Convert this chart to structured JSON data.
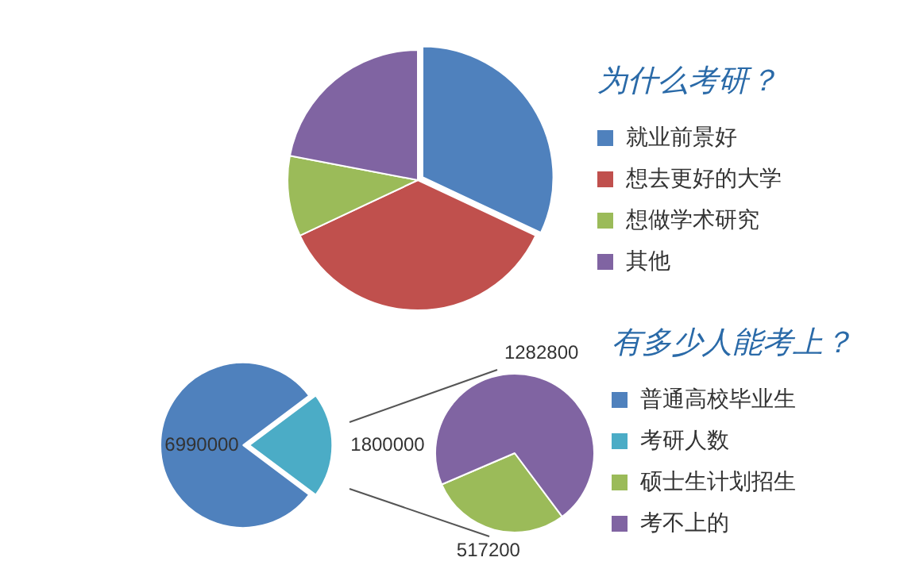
{
  "chart_data": [
    {
      "type": "pie",
      "title": "为什么考研？",
      "categories": [
        "就业前景好",
        "想去更好的大学",
        "想做学术研究",
        "其他"
      ],
      "values": [
        32,
        36,
        10,
        22
      ],
      "colors": [
        "#4f81bd",
        "#c0504d",
        "#9bbb59",
        "#8064a2"
      ],
      "legend": "right"
    },
    {
      "type": "pie",
      "title": "有多少人能考上？",
      "categories": [
        "普通高校毕业生",
        "考研人数"
      ],
      "values": [
        6990000,
        1800000
      ],
      "colors": [
        "#4f81bd",
        "#4bacc6"
      ],
      "data_labels": true,
      "legend": "right"
    },
    {
      "type": "pie",
      "categories": [
        "硕士生计划招生",
        "考不上的"
      ],
      "values": [
        517200,
        1282800
      ],
      "colors": [
        "#9bbb59",
        "#8064a2"
      ],
      "data_labels": true,
      "legend": "right"
    }
  ]
}
